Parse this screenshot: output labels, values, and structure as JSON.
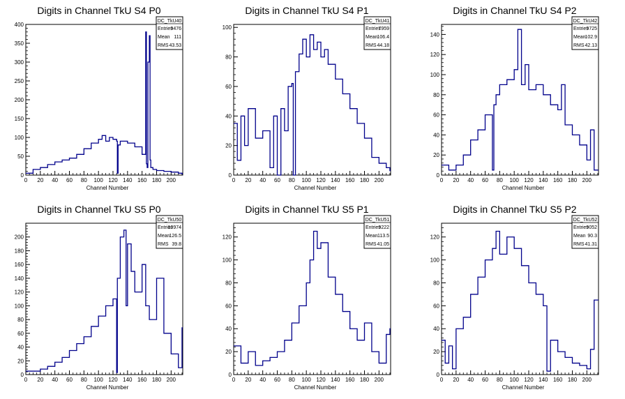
{
  "chart_data": [
    {
      "type": "histogram",
      "title": "Digits in Channel TkU S4 P0",
      "xlabel": "Channel Number",
      "xlim": [
        0,
        216
      ],
      "ylim": [
        0,
        400
      ],
      "xticks": [
        0,
        20,
        40,
        60,
        80,
        100,
        120,
        140,
        160,
        180,
        200
      ],
      "yticks": [
        50,
        100,
        150,
        200,
        250,
        300,
        350,
        400
      ],
      "stats": {
        "name": "DC_TkU40",
        "entries": "9476",
        "mean": "111",
        "rms": "43.53"
      },
      "x": [
        0,
        10,
        20,
        30,
        40,
        50,
        60,
        70,
        80,
        90,
        100,
        105,
        110,
        115,
        120,
        125,
        126,
        127,
        130,
        140,
        150,
        160,
        165,
        166,
        167,
        168,
        170,
        171,
        172,
        175,
        180,
        190,
        200,
        210,
        215
      ],
      "values": [
        5,
        15,
        20,
        28,
        35,
        40,
        45,
        55,
        70,
        85,
        95,
        105,
        90,
        100,
        95,
        90,
        5,
        80,
        90,
        85,
        75,
        55,
        380,
        30,
        20,
        300,
        370,
        40,
        20,
        15,
        12,
        10,
        8,
        5,
        3
      ]
    },
    {
      "type": "histogram",
      "title": "Digits in Channel TkU S4 P1",
      "xlabel": "Channel Number",
      "xlim": [
        0,
        216
      ],
      "ylim": [
        0,
        102
      ],
      "xticks": [
        0,
        20,
        40,
        60,
        80,
        100,
        120,
        140,
        160,
        180,
        200
      ],
      "yticks": [
        20,
        40,
        60,
        80,
        100
      ],
      "stats": {
        "name": "DC_TkU41",
        "entries": "7959",
        "mean": "106.4",
        "rms": "44.18"
      },
      "x": [
        0,
        5,
        10,
        15,
        20,
        30,
        40,
        50,
        55,
        60,
        65,
        70,
        75,
        80,
        82,
        85,
        90,
        95,
        100,
        105,
        110,
        115,
        120,
        125,
        130,
        140,
        150,
        160,
        170,
        180,
        190,
        200,
        210,
        215
      ],
      "values": [
        35,
        10,
        40,
        20,
        45,
        25,
        30,
        5,
        40,
        0,
        45,
        30,
        60,
        62,
        0,
        70,
        82,
        92,
        80,
        95,
        85,
        90,
        80,
        85,
        75,
        65,
        55,
        45,
        35,
        25,
        12,
        8,
        5,
        3
      ]
    },
    {
      "type": "histogram",
      "title": "Digits in Channel TkU S4 P2",
      "xlabel": "Channel Number",
      "xlim": [
        0,
        216
      ],
      "ylim": [
        0,
        150
      ],
      "xticks": [
        0,
        20,
        40,
        60,
        80,
        100,
        120,
        140,
        160,
        180,
        200
      ],
      "yticks": [
        20,
        40,
        60,
        80,
        100,
        120,
        140
      ],
      "stats": {
        "name": "DC_TkU42",
        "entries": "9725",
        "mean": "102.9",
        "rms": "42.13"
      },
      "x": [
        0,
        10,
        20,
        30,
        40,
        50,
        60,
        70,
        72,
        75,
        80,
        90,
        100,
        105,
        110,
        115,
        120,
        130,
        140,
        150,
        160,
        165,
        170,
        180,
        190,
        200,
        205,
        210
      ],
      "values": [
        10,
        5,
        10,
        20,
        35,
        45,
        60,
        5,
        70,
        80,
        90,
        95,
        105,
        145,
        90,
        110,
        85,
        90,
        80,
        70,
        65,
        90,
        50,
        40,
        30,
        15,
        45,
        5
      ]
    },
    {
      "type": "histogram",
      "title": "Digits in Channel TkU S5 P0",
      "xlabel": "Channel Number",
      "xlim": [
        0,
        216
      ],
      "ylim": [
        0,
        220
      ],
      "xticks": [
        0,
        20,
        40,
        60,
        80,
        100,
        120,
        140,
        160,
        180,
        200
      ],
      "yticks": [
        20,
        40,
        60,
        80,
        100,
        120,
        140,
        160,
        180,
        200
      ],
      "stats": {
        "name": "DC_TkU50",
        "entries": "10974",
        "mean": "126.5",
        "rms": "39.8"
      },
      "x": [
        0,
        10,
        20,
        30,
        40,
        50,
        60,
        70,
        80,
        90,
        100,
        110,
        120,
        125,
        126,
        130,
        135,
        138,
        140,
        145,
        150,
        160,
        165,
        170,
        180,
        190,
        200,
        210,
        215
      ],
      "values": [
        5,
        5,
        8,
        12,
        18,
        25,
        35,
        45,
        55,
        70,
        85,
        100,
        110,
        3,
        140,
        200,
        210,
        100,
        190,
        150,
        120,
        160,
        100,
        80,
        140,
        60,
        30,
        10,
        68
      ]
    },
    {
      "type": "histogram",
      "title": "Digits in Channel TkU S5 P1",
      "xlabel": "Channel Number",
      "xlim": [
        0,
        216
      ],
      "ylim": [
        0,
        132
      ],
      "xticks": [
        0,
        20,
        40,
        60,
        80,
        100,
        120,
        140,
        160,
        180,
        200
      ],
      "yticks": [
        20,
        40,
        60,
        80,
        100,
        120
      ],
      "stats": {
        "name": "DC_TkU51",
        "entries": "9222",
        "mean": "113.5",
        "rms": "41.05"
      },
      "x": [
        0,
        10,
        20,
        30,
        40,
        50,
        60,
        70,
        80,
        90,
        100,
        105,
        110,
        115,
        120,
        130,
        140,
        150,
        160,
        170,
        180,
        190,
        200,
        210,
        215
      ],
      "values": [
        25,
        10,
        20,
        8,
        12,
        15,
        20,
        30,
        45,
        60,
        80,
        100,
        125,
        110,
        115,
        85,
        70,
        55,
        40,
        30,
        45,
        20,
        10,
        35,
        40
      ]
    },
    {
      "type": "histogram",
      "title": "Digits in Channel TkU S5 P2",
      "xlabel": "Channel Number",
      "xlim": [
        0,
        216
      ],
      "ylim": [
        0,
        132
      ],
      "xticks": [
        0,
        20,
        40,
        60,
        80,
        100,
        120,
        140,
        160,
        180,
        200
      ],
      "yticks": [
        20,
        40,
        60,
        80,
        100,
        120
      ],
      "stats": {
        "name": "DC_TkU52",
        "entries": "9052",
        "mean": "90.3",
        "rms": "41.31"
      },
      "x": [
        0,
        5,
        10,
        15,
        20,
        30,
        40,
        50,
        60,
        70,
        75,
        80,
        90,
        100,
        110,
        120,
        130,
        140,
        145,
        150,
        160,
        170,
        180,
        190,
        200,
        205,
        210
      ],
      "values": [
        30,
        10,
        25,
        5,
        40,
        50,
        70,
        85,
        100,
        110,
        125,
        105,
        120,
        110,
        95,
        80,
        70,
        60,
        3,
        30,
        20,
        15,
        10,
        8,
        5,
        22,
        65
      ]
    }
  ],
  "colors": {
    "line": "#00008b",
    "axis": "#000000",
    "background": "#ffffff"
  }
}
